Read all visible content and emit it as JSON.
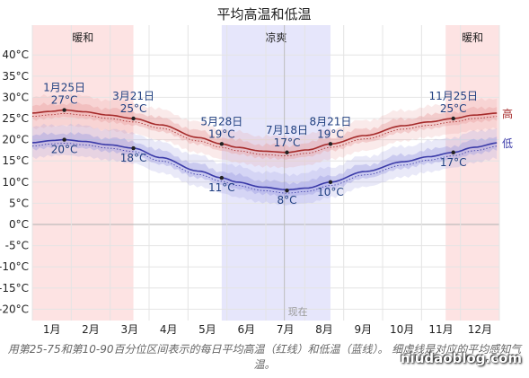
{
  "chart_data": {
    "type": "line",
    "title": "平均高温和低温",
    "y_ticks": [
      "40°C",
      "35°C",
      "30°C",
      "25°C",
      "20°C",
      "15°C",
      "10°C",
      "5°C",
      "0°C",
      "-5°C",
      "-10°C",
      "-15°C",
      "-20°C"
    ],
    "y_values": [
      40,
      35,
      30,
      25,
      20,
      15,
      10,
      5,
      0,
      -5,
      -10,
      -15,
      -20
    ],
    "ylim": [
      -23,
      43
    ],
    "x_ticks": [
      "1月",
      "2月",
      "3月",
      "4月",
      "5月",
      "6月",
      "7月",
      "8月",
      "9月",
      "10月",
      "11月",
      "12月"
    ],
    "grid": true,
    "seasons": [
      {
        "name": "暖和",
        "start_day": 0,
        "end_day": 79,
        "color": "#fde3e3"
      },
      {
        "name": "凉爽",
        "start_day": 148,
        "end_day": 233,
        "color": "#e6e6fb"
      },
      {
        "name": "暖和",
        "start_day": 323,
        "end_day": 365,
        "color": "#fde3e3"
      }
    ],
    "now_label": "现在",
    "now_day": 197,
    "series": [
      {
        "name": "高",
        "color": "#a52a2a",
        "band_color": "#e8a0a0",
        "day": [
          0,
          15,
          25,
          40,
          60,
          79,
          100,
          130,
          148,
          160,
          180,
          199,
          215,
          233,
          260,
          290,
          310,
          329,
          345,
          365
        ],
        "values": [
          26.3,
          26.7,
          27,
          26.6,
          25.8,
          25,
          23.5,
          20.5,
          19,
          18.2,
          17.3,
          17,
          17.6,
          19,
          21,
          23.3,
          24.2,
          25,
          25.8,
          26.3
        ]
      },
      {
        "name": "低",
        "color": "#3a3aa8",
        "band_color": "#9a9ae0",
        "day": [
          0,
          15,
          25,
          40,
          60,
          79,
          100,
          130,
          148,
          160,
          180,
          199,
          215,
          233,
          260,
          290,
          310,
          329,
          345,
          365
        ],
        "values": [
          19.3,
          19.8,
          20,
          19.6,
          18.8,
          18,
          15.8,
          12.6,
          11,
          10,
          8.8,
          8.2,
          8.6,
          10,
          12.5,
          14.8,
          16,
          17,
          18.2,
          19.3
        ]
      }
    ],
    "annotations": [
      {
        "date": "1月25日",
        "temp": "27°C",
        "day": 25,
        "value": 27,
        "series": 0
      },
      {
        "date": "",
        "temp": "20°C",
        "day": 25,
        "value": 20,
        "series": 1
      },
      {
        "date": "3月21日",
        "temp": "25°C",
        "day": 79,
        "value": 25,
        "series": 0
      },
      {
        "date": "",
        "temp": "18°C",
        "day": 79,
        "value": 18,
        "series": 1
      },
      {
        "date": "5月28日",
        "temp": "19°C",
        "day": 148,
        "value": 19,
        "series": 0
      },
      {
        "date": "",
        "temp": "11°C",
        "day": 148,
        "value": 11,
        "series": 1
      },
      {
        "date": "7月18日",
        "temp": "17°C",
        "day": 199,
        "value": 17,
        "series": 0
      },
      {
        "date": "",
        "temp": "8°C",
        "day": 199,
        "value": 8,
        "series": 1
      },
      {
        "date": "8月21日",
        "temp": "19°C",
        "day": 233,
        "value": 19,
        "series": 0
      },
      {
        "date": "",
        "temp": "10°C",
        "day": 233,
        "value": 10,
        "series": 1
      },
      {
        "date": "11月25日",
        "temp": "25°C",
        "day": 329,
        "value": 25,
        "series": 0
      },
      {
        "date": "",
        "temp": "17°C",
        "day": 329,
        "value": 17,
        "series": 1
      }
    ]
  },
  "caption": "用第25-75和第10-90百分位区间表示的每日平均高温（红线）和低温（蓝线）。  细虚线是对应的平均感知气温。",
  "watermark": "niudaoblog.com"
}
